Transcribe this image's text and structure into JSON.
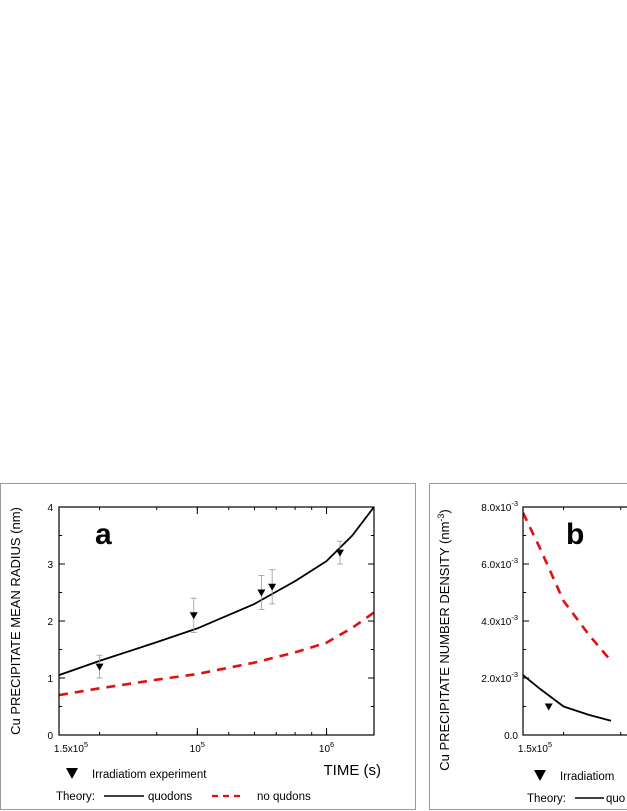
{
  "chart_data": [
    {
      "type": "line",
      "panel_label": "a",
      "ylabel": "Cu PRECIPITATE MEAN RADIUS (nm)",
      "xlabel": "TIME (s)",
      "x_scale": "log",
      "xlim": [
        150000,
        1400000
      ],
      "ylim": [
        0,
        4
      ],
      "y_ticks": [
        "0",
        "1",
        "2",
        "3",
        "4"
      ],
      "x_ticks": [
        {
          "value": 150000,
          "base": "1.5x10",
          "exp": "5"
        },
        {
          "value": 400000,
          "base": "10",
          "exp": "5"
        },
        {
          "value": 1000000,
          "base": "10",
          "exp": "6"
        }
      ],
      "series": [
        {
          "name": "quodons",
          "style": "solid",
          "color": "#000000",
          "x": [
            150000,
            200000,
            300000,
            400000,
            600000,
            800000,
            1000000,
            1200000,
            1400000
          ],
          "y": [
            1.05,
            1.3,
            1.63,
            1.87,
            2.3,
            2.7,
            3.05,
            3.5,
            4.0
          ]
        },
        {
          "name": "no qudons",
          "style": "dashed",
          "color": "#e01010",
          "x": [
            150000,
            200000,
            300000,
            400000,
            600000,
            800000,
            1000000,
            1200000,
            1400000
          ],
          "y": [
            0.7,
            0.82,
            0.97,
            1.07,
            1.27,
            1.45,
            1.62,
            1.88,
            2.15
          ]
        },
        {
          "name": "Irradiatiom experiment",
          "style": "marker",
          "color": "#000000",
          "x": [
            200000,
            390000,
            630000,
            680000,
            1100000
          ],
          "y": [
            1.2,
            2.1,
            2.5,
            2.6,
            3.2
          ],
          "err": [
            0.2,
            0.3,
            0.3,
            0.3,
            0.2
          ]
        }
      ]
    },
    {
      "type": "line",
      "panel_label": "b",
      "ylabel": "Cu PRECIPITATE NUMBER DENSITY (nm",
      "ylabel_sup": "-3",
      "ylabel_close": ")",
      "x_scale": "log",
      "xlim": [
        150000,
        1400000
      ],
      "ylim": [
        0,
        0.008
      ],
      "y_ticks": [
        {
          "value": 0,
          "base": "0.0",
          "exp": ""
        },
        {
          "value": 0.002,
          "base": "2.0x10",
          "exp": "-3"
        },
        {
          "value": 0.004,
          "base": "4.0x10",
          "exp": "-3"
        },
        {
          "value": 0.006,
          "base": "6.0x10",
          "exp": "-3"
        },
        {
          "value": 0.008,
          "base": "8.0x10",
          "exp": "-3"
        }
      ],
      "x_ticks": [
        {
          "value": 150000,
          "base": "1.5x10",
          "exp": "5"
        }
      ],
      "series": [
        {
          "name": "quodons",
          "style": "solid",
          "color": "#000000",
          "x": [
            150000,
            170000,
            200000,
            240000,
            280000
          ],
          "y": [
            0.0021,
            0.0016,
            0.001,
            0.0007,
            0.0005
          ]
        },
        {
          "name": "no qudons",
          "style": "dashed",
          "color": "#e01010",
          "x": [
            150000,
            170000,
            200000,
            240000,
            280000
          ],
          "y": [
            0.0078,
            0.0065,
            0.0047,
            0.0035,
            0.0026
          ]
        },
        {
          "name": "Irradiatiom experiment",
          "style": "marker",
          "color": "#000000",
          "x": [
            180000
          ],
          "y": [
            0.001
          ]
        }
      ]
    }
  ],
  "legend": {
    "marker_label": "Irradiatiom experiment",
    "theory_label": "Theory:",
    "quodons_label": "quodons",
    "no_qudons_label": "no qudons"
  },
  "legend_b": {
    "marker_label": "Irradiatiom",
    "theory_label": "Theory:",
    "quodons_label": "quo"
  }
}
